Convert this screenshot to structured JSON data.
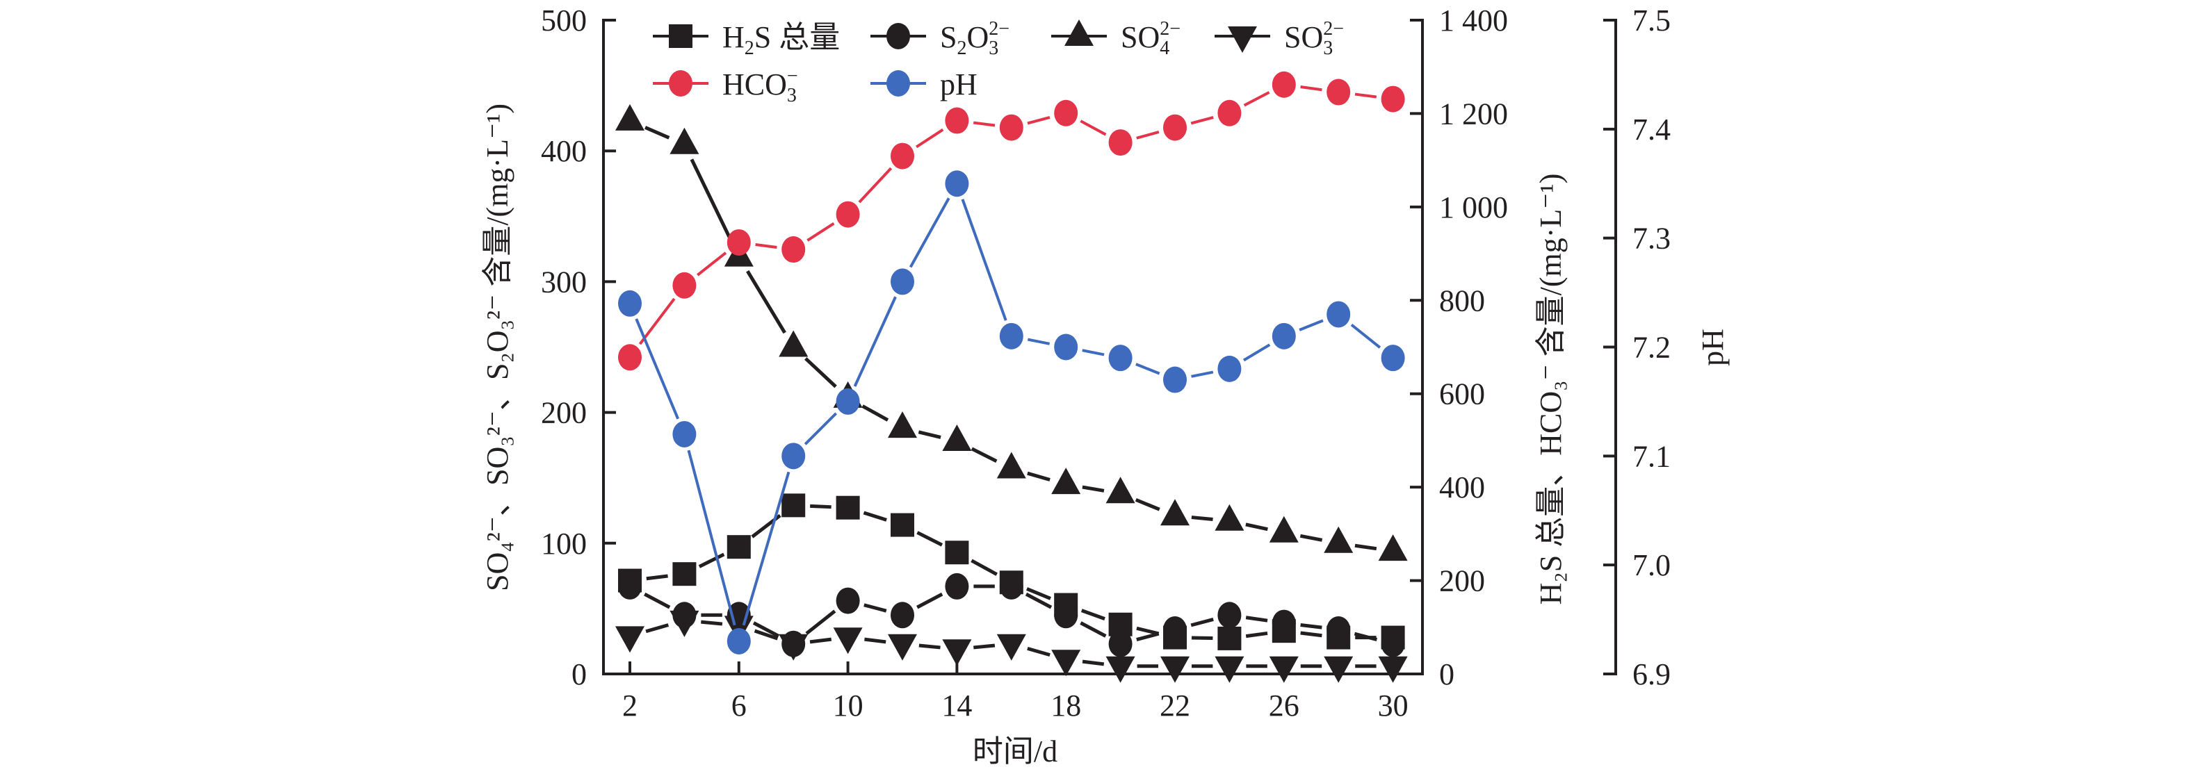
{
  "chart_data": {
    "type": "line",
    "x": [
      2,
      4,
      6,
      8,
      10,
      12,
      14,
      16,
      18,
      20,
      22,
      24,
      26,
      28,
      30
    ],
    "xlabel": "时间/d",
    "xticks": [
      "2",
      "6",
      "10",
      "14",
      "18",
      "22",
      "26",
      "30"
    ],
    "xlim": [
      0.5,
      31.5
    ],
    "axes": {
      "left": {
        "label": "SO₄²⁻、SO₃²⁻、S₂O₃²⁻ 含量/(mg·L⁻¹)",
        "ylim": [
          0,
          500
        ],
        "ticks": [
          "0",
          "100",
          "200",
          "300",
          "400",
          "500"
        ]
      },
      "right1": {
        "label": "H₂S 总量、HCO₃⁻ 含量/(mg·L⁻¹)",
        "ylim": [
          0,
          1400
        ],
        "ticks": [
          "0",
          "200",
          "400",
          "600",
          "800",
          "1 000",
          "1 200",
          "1 400"
        ]
      },
      "right2": {
        "label": "pH",
        "ylim": [
          6.9,
          7.5
        ],
        "ticks": [
          "6.9",
          "7.0",
          "7.1",
          "7.2",
          "7.3",
          "7.4",
          "7.5"
        ]
      }
    },
    "series": [
      {
        "name": "H₂S 总量",
        "legend_main": "H",
        "legend_sub": "2",
        "legend_rest": "S 总量",
        "legend_sup": "",
        "axis": "right1",
        "marker": "square",
        "color": "#231f20",
        "values": [
          200,
          214,
          272,
          361,
          356,
          319,
          260,
          196,
          148,
          106,
          78,
          76,
          92,
          78,
          78
        ]
      },
      {
        "name": "S₂O₃²⁻",
        "legend_main": "S",
        "legend_sub": "2",
        "legend_rest": "O",
        "legend_sub2": "3",
        "legend_sup": "2−",
        "axis": "left",
        "marker": "circle",
        "color": "#231f20",
        "values": [
          67,
          45,
          45,
          23,
          56,
          45,
          67,
          67,
          45,
          23,
          34,
          45,
          39,
          34,
          23
        ]
      },
      {
        "name": "SO₄²⁻",
        "legend_main": "SO",
        "legend_sub": "4",
        "legend_sup": "2−",
        "axis": "left",
        "marker": "triangle-up",
        "color": "#231f20",
        "values": [
          423,
          405,
          319,
          250,
          211,
          188,
          178,
          157,
          145,
          138,
          121,
          117,
          108,
          100,
          94
        ]
      },
      {
        "name": "SO₃²⁻",
        "legend_main": "SO",
        "legend_sub": "3",
        "legend_sup": "2−",
        "axis": "left",
        "marker": "triangle-down",
        "color": "#231f20",
        "values": [
          29,
          41,
          37,
          23,
          28,
          23,
          19,
          23,
          11,
          6,
          6,
          6,
          6,
          6,
          6
        ]
      },
      {
        "name": "HCO₃⁻",
        "legend_main": "HCO",
        "legend_sub": "3",
        "legend_sup": "−",
        "axis": "right1",
        "marker": "circle",
        "color": "#e3344a",
        "values": [
          678,
          832,
          924,
          909,
          984,
          1109,
          1185,
          1170,
          1201,
          1138,
          1170,
          1201,
          1262,
          1246,
          1231
        ]
      },
      {
        "name": "pH",
        "legend_main": "pH",
        "legend_sub": "",
        "legend_sup": "",
        "axis": "right2",
        "marker": "circle",
        "color": "#3f6bbf",
        "values": [
          7.24,
          7.12,
          6.93,
          7.1,
          7.15,
          7.26,
          7.35,
          7.21,
          7.2,
          7.19,
          7.17,
          7.18,
          7.21,
          7.23,
          7.19
        ]
      }
    ],
    "legend_position": "top"
  }
}
